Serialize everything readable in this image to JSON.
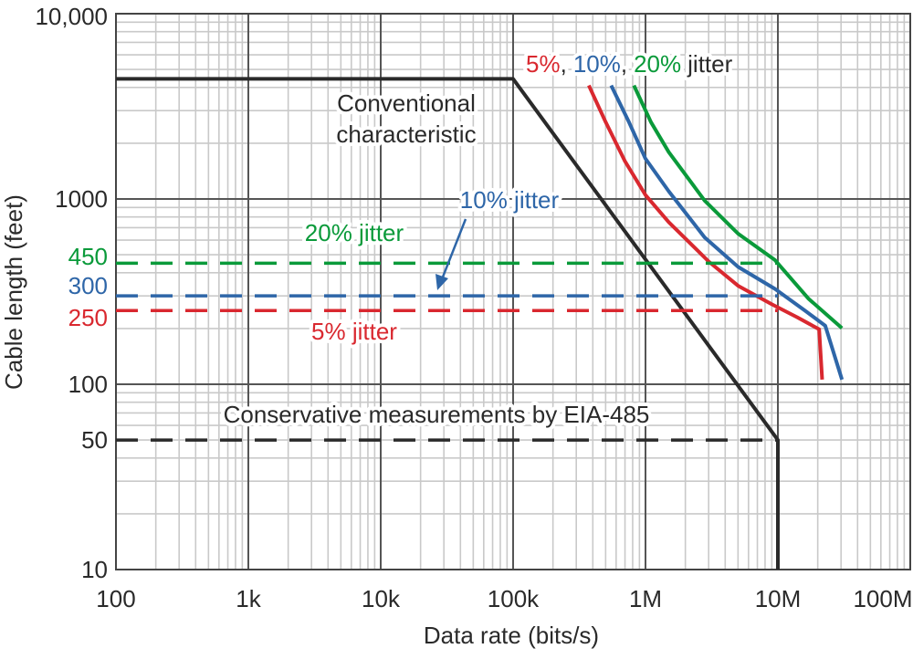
{
  "chart_data": {
    "type": "line",
    "xlabel": "Data rate (bits/s)",
    "ylabel": "Cable length (feet)",
    "x_scale": "log",
    "y_scale": "log",
    "xlim": [
      100,
      100000000
    ],
    "ylim": [
      10,
      10000
    ],
    "grid": true,
    "x_ticks": [
      {
        "value": 100,
        "label": "100"
      },
      {
        "value": 1000,
        "label": "1k"
      },
      {
        "value": 10000,
        "label": "10k"
      },
      {
        "value": 100000,
        "label": "100k"
      },
      {
        "value": 1000000,
        "label": "1M"
      },
      {
        "value": 10000000,
        "label": "10M"
      },
      {
        "value": 100000000,
        "label": "100M"
      }
    ],
    "y_ticks": [
      {
        "value": 10000,
        "label": "10,000",
        "color": "#2a2a2a"
      },
      {
        "value": 1000,
        "label": "1000",
        "color": "#2a2a2a"
      },
      {
        "value": 450,
        "label": "450",
        "color": "#0a9a3a"
      },
      {
        "value": 300,
        "label": "300",
        "color": "#2e66a8"
      },
      {
        "value": 250,
        "label": "250",
        "color": "#d9282f"
      },
      {
        "value": 100,
        "label": "100",
        "color": "#2a2a2a"
      },
      {
        "value": 50,
        "label": "50",
        "color": "#2a2a2a"
      },
      {
        "value": 10,
        "label": "10",
        "color": "#2a2a2a"
      }
    ],
    "series": [
      {
        "key": "conventional",
        "color": "#2a2a2a",
        "dashed": false,
        "points": [
          [
            100,
            4450
          ],
          [
            100000,
            4450
          ],
          [
            10000000,
            50
          ],
          [
            10000000,
            10
          ]
        ]
      },
      {
        "key": "jitter5",
        "color": "#d9282f",
        "dashed": false,
        "points": [
          [
            373000,
            4100
          ],
          [
            500000,
            2600
          ],
          [
            700000,
            1600
          ],
          [
            1000000,
            1050
          ],
          [
            1500000,
            750
          ],
          [
            3000000,
            460
          ],
          [
            5000000,
            340
          ],
          [
            9000000,
            270
          ],
          [
            14000000,
            230
          ],
          [
            20500000,
            198
          ],
          [
            21600000,
            106
          ]
        ]
      },
      {
        "key": "jitter10",
        "color": "#2e66a8",
        "dashed": false,
        "points": [
          [
            550000,
            4100
          ],
          [
            750000,
            2600
          ],
          [
            1000000,
            1650
          ],
          [
            1500000,
            1100
          ],
          [
            2800000,
            620
          ],
          [
            5000000,
            430
          ],
          [
            9500000,
            327
          ],
          [
            16000000,
            250
          ],
          [
            22800000,
            207
          ],
          [
            30500000,
            106
          ]
        ]
      },
      {
        "key": "jitter20",
        "color": "#0a9a3a",
        "dashed": false,
        "points": [
          [
            817000,
            4100
          ],
          [
            1100000,
            2600
          ],
          [
            1500000,
            1790
          ],
          [
            2800000,
            980
          ],
          [
            5000000,
            650
          ],
          [
            9500000,
            468
          ],
          [
            17000000,
            290
          ],
          [
            30500000,
            201
          ]
        ]
      },
      {
        "key": "limit20",
        "color": "#0a9a3a",
        "dashed": true,
        "points": [
          [
            100,
            450
          ],
          [
            10000000,
            450
          ]
        ]
      },
      {
        "key": "limit10",
        "color": "#2e66a8",
        "dashed": true,
        "points": [
          [
            100,
            300
          ],
          [
            10000000,
            300
          ]
        ]
      },
      {
        "key": "limit5",
        "color": "#d9282f",
        "dashed": true,
        "points": [
          [
            100,
            250
          ],
          [
            10000000,
            250
          ]
        ]
      },
      {
        "key": "eia485",
        "color": "#2a2a2a",
        "dashed": true,
        "points": [
          [
            100,
            50
          ],
          [
            10000000,
            50
          ]
        ]
      }
    ],
    "annotations": {
      "legend_5": "5%",
      "legend_sep1": ",",
      "legend_10": "10%",
      "legend_sep2": ",",
      "legend_20": "20%",
      "legend_jitter": "jitter",
      "conventional_line1": "Conventional",
      "conventional_line2": "characteristic",
      "jitter10": "10% jitter",
      "jitter20": "20% jitter",
      "jitter5": "5% jitter",
      "eia485": "Conservative measurements by EIA-485"
    },
    "legend_position": "top-right"
  }
}
